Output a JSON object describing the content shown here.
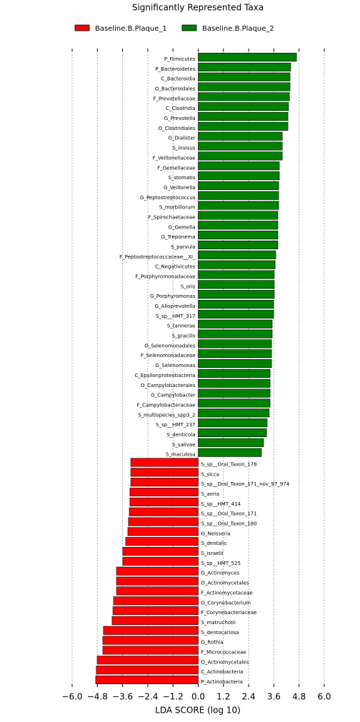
{
  "chart_data": {
    "type": "lda_bar",
    "title": "Significantly Represented Taxa",
    "xlabel": "LDA SCORE (log 10)",
    "xlim": [
      -6.0,
      6.0
    ],
    "xticks": [
      {
        "value": -6.0,
        "label": "−6.0"
      },
      {
        "value": -4.8,
        "label": "−4.8"
      },
      {
        "value": -3.6,
        "label": "−3.6"
      },
      {
        "value": -2.4,
        "label": "−2.4"
      },
      {
        "value": -1.2,
        "label": "−1.2"
      },
      {
        "value": 0,
        "label": "0.0"
      },
      {
        "value": 1.2,
        "label": "1.2"
      },
      {
        "value": 2.4,
        "label": "2.4"
      },
      {
        "value": 3.6,
        "label": "3.6"
      },
      {
        "value": 4.8,
        "label": "4.8"
      },
      {
        "value": 6.0,
        "label": "6.0"
      }
    ],
    "grid": true,
    "series": [
      {
        "name": "Baseline.B.Plaque_2",
        "color": "#008000",
        "categories": [
          "P_Firmicutes",
          "P_Bacteroidetes",
          "C_Bacteroidia",
          "O_Bacteroidales",
          "F_Prevotellaceae",
          "C_Clostridia",
          "G_Prevotella",
          "O_Clostridiales",
          "G_Dialister",
          "S_invisus",
          "F_Veillonellaceae",
          "F_Gemellaceae",
          "S_stomatis",
          "G_Veillonella",
          "G_Peptostreptococcus",
          "S_morbillorum",
          "F_Spirochaetaceae",
          "G_Gemella",
          "G_Treponema",
          "S_parvula",
          "F_Peptostreptococcaceae__XI_",
          "C_Negativicutes",
          "F_Porphyromonadaceae",
          "S_oris",
          "G_Porphyromonas",
          "G_Alloprevotella",
          "S_sp__HMT_317",
          "S_tannerae",
          "S_gracilis",
          "O_Selenomonadales",
          "F_Selenomonadaceae",
          "G_Selenomonas",
          "C_Epsilonproteobacteria",
          "O_Campylobacterales",
          "G_Campylobacter",
          "F_Campylobacteraceae",
          "S_multispecies_spp3_2",
          "S_sp__HMT_237",
          "S_denticola",
          "S_salivae",
          "S_maculosa"
        ],
        "values": [
          4.68,
          4.4,
          4.37,
          4.37,
          4.34,
          4.3,
          4.27,
          4.27,
          4.0,
          4.0,
          4.0,
          3.86,
          3.86,
          3.83,
          3.83,
          3.83,
          3.79,
          3.79,
          3.79,
          3.79,
          3.69,
          3.66,
          3.62,
          3.62,
          3.62,
          3.59,
          3.59,
          3.52,
          3.52,
          3.49,
          3.49,
          3.49,
          3.42,
          3.42,
          3.42,
          3.42,
          3.38,
          3.28,
          3.25,
          3.11,
          3.01
        ]
      },
      {
        "name": "Baseline.B.Plaque_1",
        "color": "#ff0000",
        "categories": [
          "S_sp__Oral_Taxon_178",
          "S_sicca",
          "S_sp__Oral_Taxon_171_nov_97_974",
          "S_aeria",
          "S_sp__HMT_414",
          "S_sp__Oral_Taxon_171",
          "S_sp__Oral_Taxon_180",
          "G_Neisseria",
          "S_dentalis",
          "S_israelii",
          "S_sp__HMT_525",
          "G_Actinomyces",
          "O_Actinomycetales",
          "F_Actinomycetaceae",
          "G_Corynebacterium",
          "F_Corynebacteriaceae",
          "S_matruchotii",
          "S_dentocariosa",
          "G_Rothia",
          "F_Micrococcaceae",
          "O_Actinomycetales",
          "C_Actinobacteria",
          "P_Actinobacteria"
        ],
        "values": [
          -3.21,
          -3.21,
          -3.21,
          -3.25,
          -3.25,
          -3.28,
          -3.32,
          -3.35,
          -3.45,
          -3.59,
          -3.59,
          -3.89,
          -3.89,
          -3.89,
          -4.03,
          -4.06,
          -4.1,
          -4.51,
          -4.54,
          -4.54,
          -4.81,
          -4.85,
          -4.88
        ]
      }
    ]
  }
}
